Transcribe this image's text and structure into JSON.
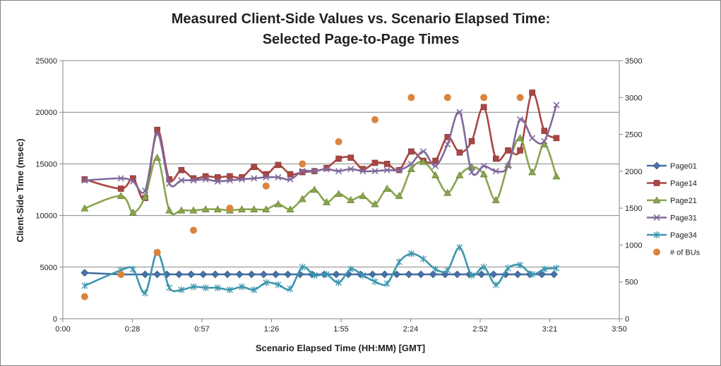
{
  "chart_data": {
    "type": "line",
    "title": [
      "Measured Client-Side Values vs. Scenario Elapsed Time:",
      "Selected Page-to-Page Times"
    ],
    "xlabel": "Scenario Elapsed Time (HH:MM) [GMT]",
    "ylabel": "Client-Side Time (msec)",
    "xlim": [
      0,
      230
    ],
    "ylim": [
      0,
      25000
    ],
    "y2lim": [
      0,
      3500
    ],
    "x_ticks": [
      {
        "value": 0,
        "label": "0:00"
      },
      {
        "value": 28.75,
        "label": "0:28"
      },
      {
        "value": 57.5,
        "label": "0:57"
      },
      {
        "value": 86.25,
        "label": "1:26"
      },
      {
        "value": 115,
        "label": "1:55"
      },
      {
        "value": 143.75,
        "label": "2:24"
      },
      {
        "value": 172.5,
        "label": "2:52"
      },
      {
        "value": 201.25,
        "label": "3:21"
      },
      {
        "value": 230,
        "label": "3:50"
      }
    ],
    "y_ticks": [
      0,
      5000,
      10000,
      15000,
      20000,
      25000
    ],
    "y2_ticks": [
      0,
      500,
      1000,
      1500,
      2000,
      2500,
      3000,
      3500
    ],
    "grid": true,
    "legend_position": "right",
    "series": [
      {
        "name": "Page01",
        "axis": "left",
        "color": "#4572A7",
        "marker": "diamond",
        "x": [
          9,
          24,
          34,
          39,
          43,
          48,
          53,
          58,
          63,
          68,
          73,
          78,
          83,
          88,
          93,
          98,
          103,
          108,
          113,
          118,
          123,
          128,
          133,
          138,
          143,
          148,
          153,
          158,
          163,
          168,
          173,
          178,
          183,
          188,
          193,
          198,
          203
        ],
        "y": [
          4450,
          4300,
          4300,
          4300,
          4300,
          4300,
          4300,
          4300,
          4300,
          4300,
          4300,
          4300,
          4300,
          4300,
          4300,
          4300,
          4300,
          4300,
          4300,
          4300,
          4300,
          4300,
          4300,
          4300,
          4300,
          4300,
          4300,
          4300,
          4300,
          4300,
          4300,
          4300,
          4300,
          4300,
          4300,
          4300,
          4300
        ]
      },
      {
        "name": "Page14",
        "axis": "left",
        "color": "#AA4643",
        "marker": "square",
        "x": [
          9,
          24,
          29,
          34,
          39,
          44,
          49,
          54,
          59,
          64,
          69,
          74,
          79,
          84,
          89,
          94,
          99,
          104,
          109,
          114,
          119,
          124,
          129,
          134,
          139,
          144,
          149,
          154,
          159,
          164,
          169,
          174,
          179,
          184,
          189,
          194,
          199,
          204
        ],
        "y": [
          13500,
          12600,
          13600,
          11700,
          18300,
          13500,
          14400,
          13600,
          13800,
          13700,
          13800,
          13700,
          14700,
          14000,
          14900,
          14000,
          14200,
          14300,
          14600,
          15500,
          15600,
          14500,
          15100,
          15000,
          14400,
          16200,
          15300,
          15300,
          17600,
          16100,
          17200,
          20500,
          15500,
          16300,
          16300,
          21900,
          18200,
          17500
        ]
      },
      {
        "name": "Page21",
        "axis": "left",
        "color": "#89A54E",
        "marker": "triangle",
        "x": [
          9,
          24,
          29,
          34,
          39,
          44,
          49,
          54,
          59,
          64,
          69,
          74,
          79,
          84,
          89,
          94,
          99,
          104,
          109,
          114,
          119,
          124,
          129,
          134,
          139,
          144,
          149,
          154,
          159,
          164,
          169,
          174,
          179,
          184,
          189,
          194,
          199,
          204
        ],
        "y": [
          10700,
          11900,
          10300,
          11800,
          15600,
          10500,
          10500,
          10500,
          10600,
          10600,
          10500,
          10600,
          10600,
          10600,
          11100,
          10600,
          11600,
          12500,
          11300,
          12100,
          11500,
          11900,
          11100,
          12600,
          11900,
          14500,
          15200,
          13900,
          12200,
          13900,
          14700,
          14000,
          11500,
          14900,
          17500,
          14200,
          16900,
          13800
        ]
      },
      {
        "name": "Page31",
        "axis": "left",
        "color": "#80699B",
        "marker": "x",
        "x": [
          9,
          24,
          29,
          34,
          39,
          44,
          49,
          54,
          59,
          64,
          69,
          74,
          79,
          84,
          89,
          94,
          99,
          104,
          109,
          114,
          119,
          124,
          129,
          134,
          139,
          144,
          149,
          154,
          159,
          164,
          169,
          174,
          179,
          184,
          189,
          194,
          199,
          204
        ],
        "y": [
          13400,
          13600,
          13300,
          12400,
          17900,
          13100,
          13400,
          13400,
          13500,
          13300,
          13400,
          13500,
          13600,
          13700,
          13700,
          13500,
          14300,
          14300,
          14500,
          14300,
          14500,
          14300,
          14300,
          14400,
          14400,
          15000,
          16200,
          14800,
          16900,
          20000,
          14200,
          14800,
          14300,
          14800,
          19300,
          17500,
          17200,
          20700
        ]
      },
      {
        "name": "Page34",
        "axis": "left",
        "color": "#3D96AE",
        "marker": "asterisk",
        "x": [
          9,
          24,
          29,
          34,
          39,
          44,
          49,
          54,
          59,
          64,
          69,
          74,
          79,
          84,
          89,
          94,
          99,
          104,
          109,
          114,
          119,
          124,
          129,
          134,
          139,
          144,
          149,
          154,
          159,
          164,
          169,
          174,
          179,
          184,
          189,
          194,
          199,
          204
        ],
        "y": [
          3200,
          4700,
          4800,
          2500,
          6400,
          3000,
          2800,
          3100,
          3000,
          3000,
          2800,
          3100,
          2800,
          3500,
          3300,
          2900,
          5000,
          4200,
          4300,
          3500,
          4800,
          4200,
          3600,
          3400,
          5500,
          6300,
          5800,
          4800,
          4700,
          6900,
          4200,
          5000,
          3300,
          4900,
          5200,
          4300,
          4800,
          4900
        ]
      },
      {
        "name": "# of BUs",
        "axis": "right",
        "color": "#DB843D",
        "marker": "circle",
        "line": false,
        "x": [
          9,
          24,
          39,
          54,
          69,
          84,
          99,
          114,
          129,
          144,
          159,
          174,
          189
        ],
        "y": [
          300,
          600,
          900,
          1200,
          1500,
          1800,
          2100,
          2400,
          2700,
          3000,
          3000,
          3000,
          3000
        ]
      }
    ]
  }
}
